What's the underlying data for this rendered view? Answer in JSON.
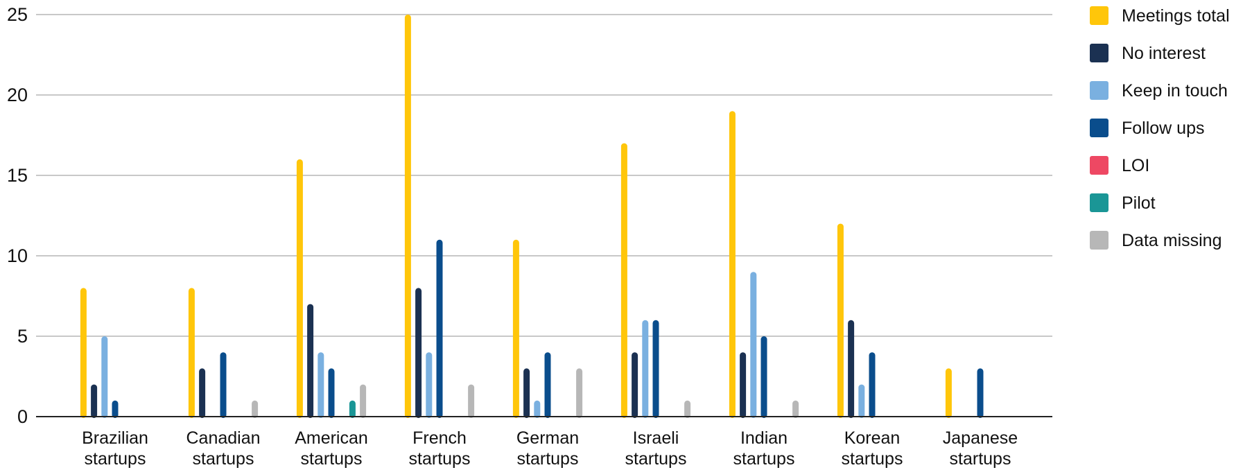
{
  "chart_data": {
    "type": "bar",
    "title": "",
    "xlabel": "",
    "ylabel": "",
    "ylim": [
      0,
      25
    ],
    "yticks": [
      "0",
      "5",
      "10",
      "15",
      "20",
      "25"
    ],
    "grid": true,
    "legend_position": "right",
    "categories": [
      [
        "Brazilian",
        "startups"
      ],
      [
        "Canadian",
        "startups"
      ],
      [
        "American",
        "startups"
      ],
      [
        "French",
        "startups"
      ],
      [
        "German",
        "startups"
      ],
      [
        "Israeli",
        "startups"
      ],
      [
        "Indian",
        "startups"
      ],
      [
        "Korean",
        "startups"
      ],
      [
        "Japanese",
        "startups"
      ]
    ],
    "series": [
      {
        "name": "Meetings total",
        "color": "#FFC60A",
        "values": [
          8,
          8,
          16,
          25,
          11,
          17,
          19,
          12,
          3
        ]
      },
      {
        "name": "No interest",
        "color": "#1B3152",
        "values": [
          2,
          3,
          7,
          8,
          3,
          4,
          4,
          6,
          0
        ]
      },
      {
        "name": "Keep in touch",
        "color": "#7AB0E0",
        "values": [
          5,
          0,
          4,
          4,
          1,
          6,
          9,
          2,
          0
        ]
      },
      {
        "name": "Follow ups",
        "color": "#0A4D8C",
        "values": [
          1,
          4,
          3,
          11,
          4,
          6,
          5,
          4,
          3
        ]
      },
      {
        "name": "LOI",
        "color": "#EE4863",
        "values": [
          0,
          0,
          0,
          0,
          0,
          0,
          0,
          0,
          0
        ]
      },
      {
        "name": "Pilot",
        "color": "#1A9696",
        "values": [
          0,
          0,
          1,
          0,
          0,
          0,
          0,
          0,
          0
        ]
      },
      {
        "name": "Data missing",
        "color": "#B7B7B7",
        "values": [
          0,
          1,
          2,
          2,
          3,
          1,
          1,
          0,
          0
        ]
      }
    ]
  }
}
